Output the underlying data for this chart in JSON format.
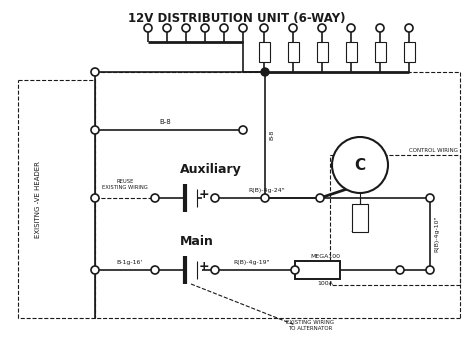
{
  "title": "12V DISTRIBUTION UNIT (6-WAY)",
  "bg_color": "#ffffff",
  "line_color": "#1a1a1a",
  "label_auxiliary": "Auxiliary",
  "label_main": "Main",
  "label_existing": "EXISITNG -VE HEADER",
  "label_reuse": "REUSE\nEXISTING WIRING",
  "label_b8_top": "B-8",
  "label_b8_vert": "B-8",
  "label_b1g16": "B-1g-16'",
  "label_rb4g24": "R(B)-4g-24\"",
  "label_rb4g19": "R(B)-4g-19\"",
  "label_rb4g10": "R(B)-4g-10\"",
  "label_mega100": "MEGA100",
  "label_100a": "100A",
  "label_control": "CONTROL WIRING",
  "label_existing_wiring": "EXISTING WIRING\nTO ALTERNATOR",
  "label_C": "C",
  "label_plus": "+"
}
